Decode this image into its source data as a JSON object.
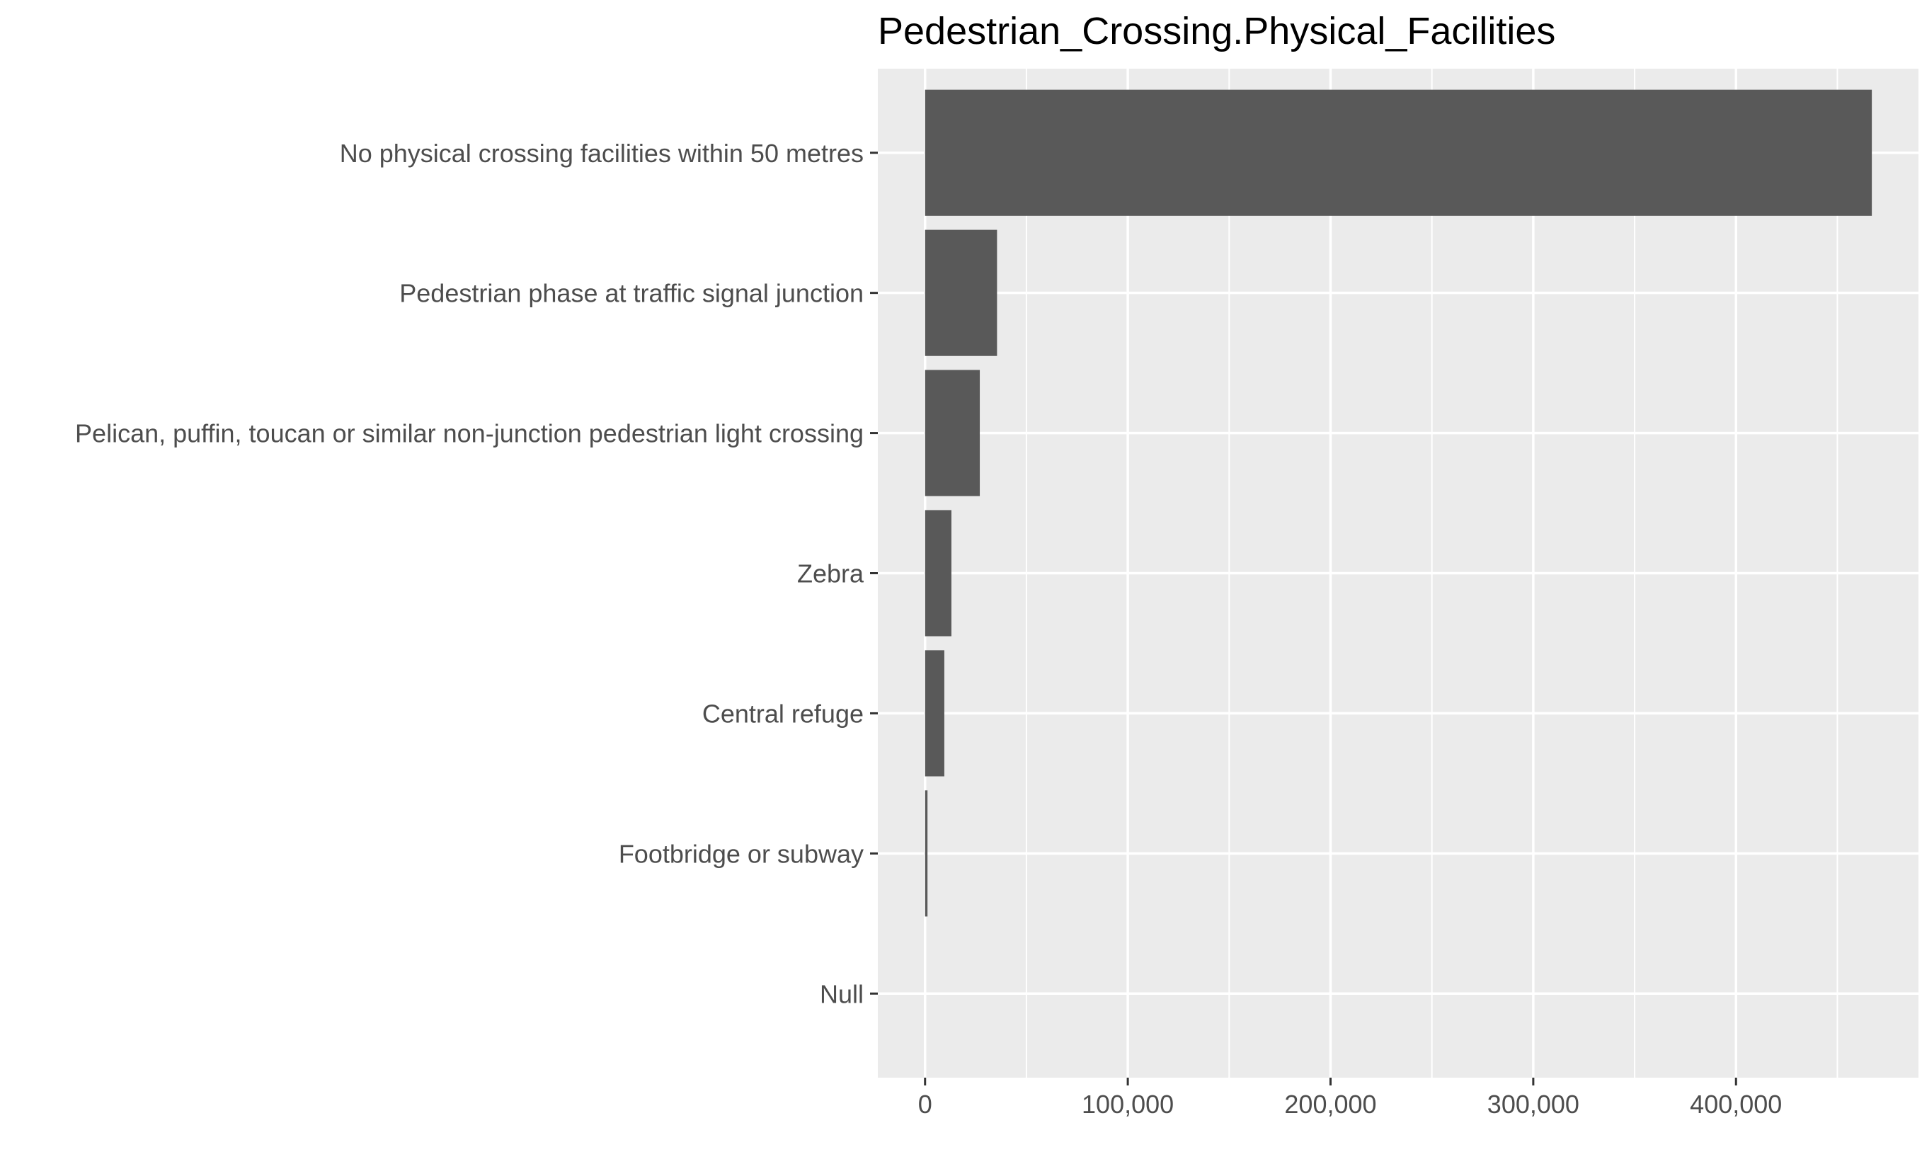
{
  "chart_data": {
    "type": "bar",
    "orientation": "horizontal",
    "title": "Pedestrian_Crossing.Physical_Facilities",
    "xlabel": "",
    "ylabel": "",
    "categories": [
      "No physical crossing facilities within 50 metres",
      "Pedestrian phase at traffic signal junction",
      "Pelican, puffin, toucan or similar non-junction pedestrian light crossing",
      "Zebra",
      "Central refuge",
      "Footbridge or subway",
      "Null"
    ],
    "values": [
      467000,
      35500,
      27000,
      13000,
      9500,
      1200,
      0
    ],
    "xlim": [
      -23300,
      490000
    ],
    "x_ticks": [
      0,
      100000,
      200000,
      300000,
      400000
    ],
    "x_tick_labels": [
      "0",
      "100,000",
      "200,000",
      "300,000",
      "400,000"
    ],
    "grid": true,
    "legend": "none",
    "colors": {
      "panel_background": "#ebebeb",
      "grid_line": "#ffffff",
      "bar_fill": "#595959",
      "tick_color": "#333333",
      "label_color": "#4d4d4d",
      "title_color": "#000000"
    }
  }
}
